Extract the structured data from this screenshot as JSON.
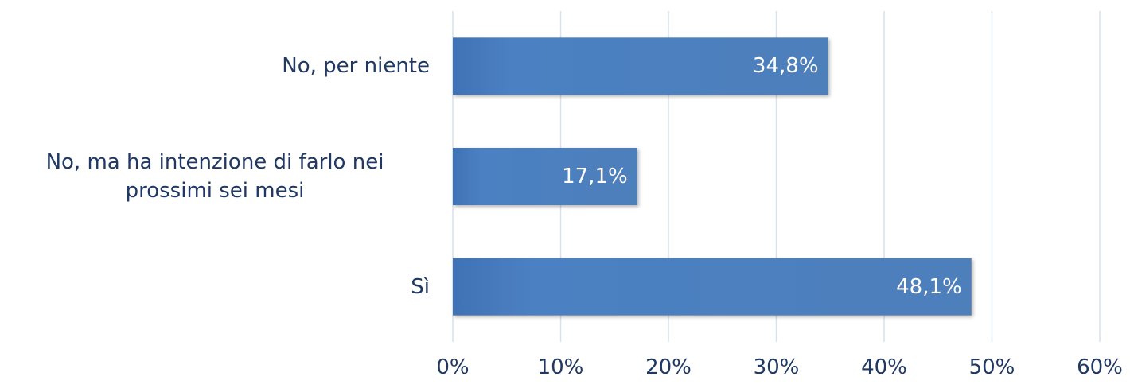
{
  "chart_data": {
    "type": "bar",
    "orientation": "horizontal",
    "categories": [
      "No, per niente",
      "No, ma ha intenzione di farlo nei prossimi sei mesi",
      "Sì"
    ],
    "values": [
      34.8,
      17.1,
      48.1
    ],
    "value_labels": [
      "34,8%",
      "17,1%",
      "48,1%"
    ],
    "color": "#4a7ebf",
    "xlim": [
      0,
      60
    ],
    "xticks": [
      {
        "value": 0,
        "label": "0%"
      },
      {
        "value": 10,
        "label": "10%"
      },
      {
        "value": 20,
        "label": "20%"
      },
      {
        "value": 30,
        "label": "30%"
      },
      {
        "value": 40,
        "label": "40%"
      },
      {
        "value": 50,
        "label": "50%"
      },
      {
        "value": 60,
        "label": "60%"
      }
    ],
    "grid": true
  }
}
